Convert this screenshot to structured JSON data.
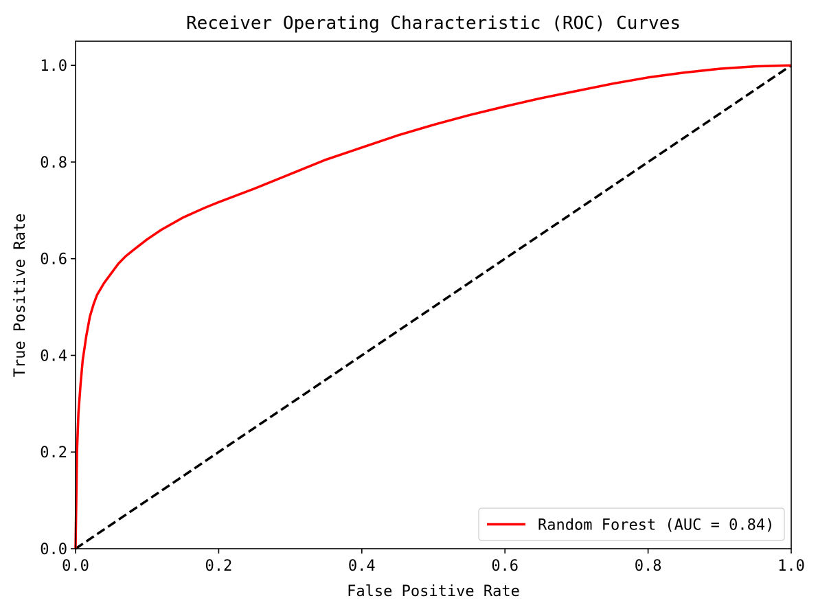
{
  "chart_data": {
    "type": "line",
    "title": "Receiver Operating Characteristic (ROC) Curves",
    "xlabel": "False Positive Rate",
    "ylabel": "True Positive Rate",
    "xlim": [
      0.0,
      1.0
    ],
    "ylim": [
      0.0,
      1.05
    ],
    "x_ticks": [
      0.0,
      0.2,
      0.4,
      0.6,
      0.8,
      1.0
    ],
    "x_tick_labels": [
      "0.0",
      "0.2",
      "0.4",
      "0.6",
      "0.8",
      "1.0"
    ],
    "y_ticks": [
      0.0,
      0.2,
      0.4,
      0.6,
      0.8,
      1.0
    ],
    "y_tick_labels": [
      "0.0",
      "0.2",
      "0.4",
      "0.6",
      "0.8",
      "1.0"
    ],
    "grid": false,
    "legend_position": "lower-right",
    "series": [
      {
        "name": "Random Forest (AUC = 0.84)",
        "color": "#ff0000",
        "line_style": "solid",
        "x": [
          0.0,
          0.002,
          0.004,
          0.007,
          0.01,
          0.015,
          0.02,
          0.025,
          0.03,
          0.04,
          0.05,
          0.06,
          0.07,
          0.08,
          0.1,
          0.12,
          0.15,
          0.18,
          0.2,
          0.25,
          0.3,
          0.35,
          0.4,
          0.45,
          0.5,
          0.55,
          0.6,
          0.65,
          0.7,
          0.75,
          0.8,
          0.85,
          0.9,
          0.95,
          1.0
        ],
        "y": [
          0.0,
          0.2,
          0.28,
          0.34,
          0.39,
          0.44,
          0.48,
          0.505,
          0.525,
          0.55,
          0.57,
          0.59,
          0.605,
          0.617,
          0.64,
          0.66,
          0.685,
          0.705,
          0.717,
          0.745,
          0.775,
          0.805,
          0.83,
          0.855,
          0.877,
          0.897,
          0.915,
          0.932,
          0.947,
          0.962,
          0.975,
          0.985,
          0.993,
          0.998,
          1.0
        ]
      },
      {
        "name": "",
        "color": "#000000",
        "line_style": "dashed",
        "x": [
          0.0,
          1.0
        ],
        "y": [
          0.0,
          1.0
        ]
      }
    ]
  }
}
